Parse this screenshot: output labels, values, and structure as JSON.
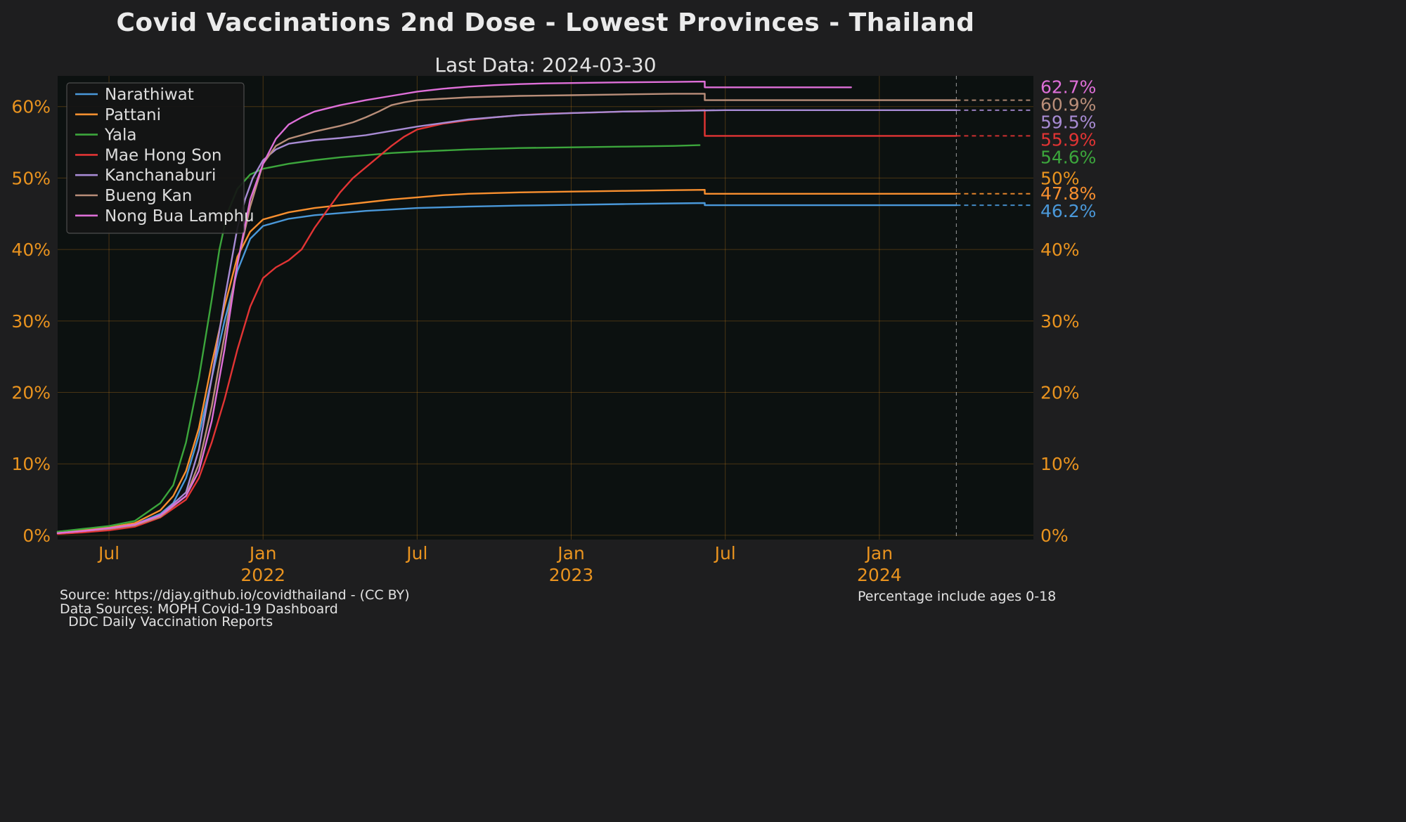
{
  "page": {
    "title": "Covid Vaccinations 2nd Dose - Lowest Provinces - Thailand",
    "subtitle": "Last Data: 2024-03-30"
  },
  "footer": {
    "source_line_1": "Source: https://djay.github.io/covidthailand - (CC BY)",
    "source_line_2": "Data Sources: MOPH Covid-19 Dashboard",
    "source_line_3": "  DDC Daily Vaccination Reports",
    "note": "Percentage include ages 0-18"
  },
  "theme": {
    "bg": "#1e1e1f",
    "plot_bg": "#0c1110",
    "tick_color": "#e9931f",
    "grid_color": "rgba(233,147,31,0.28)",
    "legend_bg": "#151515",
    "legend_border": "#4d4d4d",
    "legend_text": "#dddddd",
    "last_data_line_color": "#c8c8c8"
  },
  "chart_data": {
    "type": "line",
    "title": "Covid Vaccinations 2nd Dose - Lowest Provinces - Thailand",
    "subtitle": "Last Data: 2024-03-30",
    "legend_position": "upper-left",
    "x_axis": {
      "unit": "months since 2021-05",
      "domain_months": 38,
      "start": "2021-05",
      "end": "2024-07",
      "ticks": [
        {
          "m": 2,
          "label": "Jul"
        },
        {
          "m": 8,
          "label": "Jan",
          "year": "2022"
        },
        {
          "m": 14,
          "label": "Jul"
        },
        {
          "m": 20,
          "label": "Jan",
          "year": "2023"
        },
        {
          "m": 26,
          "label": "Jul"
        },
        {
          "m": 32,
          "label": "Jan",
          "year": "2024"
        }
      ]
    },
    "y_axis": {
      "unit": "%",
      "ylim": [
        -0.6,
        64.3
      ],
      "ticks_left": [
        0,
        10,
        20,
        30,
        40,
        50,
        60
      ],
      "ticks_right": [
        0,
        10,
        20,
        30,
        40,
        50
      ]
    },
    "last_data_month": 35,
    "series": [
      {
        "name": "Narathiwat",
        "color": "#4a98d9",
        "final_value": 46.2,
        "final_label": "46.2%",
        "dashed_extension": true,
        "points": [
          [
            0,
            0.4
          ],
          [
            1,
            0.7
          ],
          [
            2,
            1.0
          ],
          [
            3,
            1.5
          ],
          [
            4,
            3.0
          ],
          [
            4.5,
            4.5
          ],
          [
            5,
            8
          ],
          [
            5.5,
            14
          ],
          [
            6,
            22
          ],
          [
            6.5,
            30
          ],
          [
            7,
            37
          ],
          [
            7.5,
            41.5
          ],
          [
            8,
            43.3
          ],
          [
            9,
            44.3
          ],
          [
            10,
            44.8
          ],
          [
            11,
            45.1
          ],
          [
            12,
            45.4
          ],
          [
            13,
            45.6
          ],
          [
            14,
            45.8
          ],
          [
            15,
            45.9
          ],
          [
            16,
            46.0
          ],
          [
            18,
            46.15
          ],
          [
            20,
            46.25
          ],
          [
            22,
            46.35
          ],
          [
            24,
            46.45
          ],
          [
            25.2,
            46.5
          ],
          [
            25.2,
            46.2
          ],
          [
            35,
            46.2
          ]
        ]
      },
      {
        "name": "Pattani",
        "color": "#f88f2f",
        "final_value": 47.8,
        "final_label": "47.8%",
        "dashed_extension": true,
        "points": [
          [
            0,
            0.5
          ],
          [
            1,
            0.8
          ],
          [
            2,
            1.1
          ],
          [
            3,
            1.7
          ],
          [
            4,
            3.5
          ],
          [
            4.5,
            5.5
          ],
          [
            5,
            9
          ],
          [
            5.5,
            15
          ],
          [
            6,
            24
          ],
          [
            6.5,
            32
          ],
          [
            7,
            39
          ],
          [
            7.5,
            42.5
          ],
          [
            8,
            44.2
          ],
          [
            9,
            45.2
          ],
          [
            10,
            45.8
          ],
          [
            11,
            46.2
          ],
          [
            12,
            46.6
          ],
          [
            13,
            47.0
          ],
          [
            14,
            47.3
          ],
          [
            15,
            47.6
          ],
          [
            16,
            47.8
          ],
          [
            17,
            47.9
          ],
          [
            18,
            48.0
          ],
          [
            20,
            48.1
          ],
          [
            22,
            48.2
          ],
          [
            24,
            48.3
          ],
          [
            25.2,
            48.35
          ],
          [
            25.2,
            47.8
          ],
          [
            35,
            47.8
          ]
        ]
      },
      {
        "name": "Yala",
        "color": "#3ca63c",
        "final_value": 54.6,
        "final_label": "54.6%",
        "dashed_extension": false,
        "points": [
          [
            0,
            0.5
          ],
          [
            1,
            0.9
          ],
          [
            2,
            1.3
          ],
          [
            3,
            2.0
          ],
          [
            4,
            4.5
          ],
          [
            4.5,
            7
          ],
          [
            5,
            13
          ],
          [
            5.5,
            22
          ],
          [
            6,
            33
          ],
          [
            6.3,
            40
          ],
          [
            6.6,
            45
          ],
          [
            7,
            48.5
          ],
          [
            7.5,
            50.5
          ],
          [
            8,
            51.3
          ],
          [
            9,
            52.0
          ],
          [
            10,
            52.5
          ],
          [
            11,
            52.9
          ],
          [
            12,
            53.2
          ],
          [
            13,
            53.5
          ],
          [
            14,
            53.7
          ],
          [
            16,
            54.0
          ],
          [
            18,
            54.2
          ],
          [
            20,
            54.3
          ],
          [
            22,
            54.4
          ],
          [
            24,
            54.5
          ],
          [
            25,
            54.6
          ]
        ]
      },
      {
        "name": "Mae Hong Son",
        "color": "#e23434",
        "final_value": 55.9,
        "final_label": "55.9%",
        "dashed_extension": true,
        "points": [
          [
            0,
            0.2
          ],
          [
            1,
            0.4
          ],
          [
            2,
            0.7
          ],
          [
            3,
            1.2
          ],
          [
            4,
            2.5
          ],
          [
            5,
            5
          ],
          [
            5.5,
            8
          ],
          [
            6,
            13
          ],
          [
            6.5,
            19
          ],
          [
            7,
            26
          ],
          [
            7.5,
            32
          ],
          [
            8,
            36
          ],
          [
            8.5,
            37.5
          ],
          [
            9,
            38.5
          ],
          [
            9.5,
            40
          ],
          [
            10,
            43
          ],
          [
            10.5,
            45.5
          ],
          [
            11,
            48
          ],
          [
            11.5,
            50
          ],
          [
            12,
            51.5
          ],
          [
            12.5,
            53
          ],
          [
            13,
            54.5
          ],
          [
            13.5,
            55.8
          ],
          [
            14,
            56.8
          ],
          [
            15,
            57.6
          ],
          [
            16,
            58.1
          ],
          [
            17,
            58.5
          ],
          [
            18,
            58.8
          ],
          [
            19,
            59.0
          ],
          [
            20,
            59.1
          ],
          [
            21,
            59.2
          ],
          [
            22,
            59.3
          ],
          [
            24,
            59.4
          ],
          [
            25.2,
            59.5
          ],
          [
            25.2,
            55.9
          ],
          [
            35,
            55.9
          ]
        ]
      },
      {
        "name": "Kanchanaburi",
        "color": "#a88bd4",
        "final_value": 59.5,
        "final_label": "59.5%",
        "dashed_extension": true,
        "points": [
          [
            0,
            0.3
          ],
          [
            1,
            0.6
          ],
          [
            2,
            0.9
          ],
          [
            3,
            1.4
          ],
          [
            4,
            2.8
          ],
          [
            5,
            6
          ],
          [
            5.5,
            12
          ],
          [
            6,
            22
          ],
          [
            6.5,
            33
          ],
          [
            7,
            43
          ],
          [
            7.3,
            47
          ],
          [
            7.6,
            50
          ],
          [
            8,
            52.5
          ],
          [
            8.5,
            54
          ],
          [
            9,
            54.8
          ],
          [
            10,
            55.3
          ],
          [
            11,
            55.6
          ],
          [
            12,
            56.0
          ],
          [
            13,
            56.6
          ],
          [
            14,
            57.2
          ],
          [
            15,
            57.7
          ],
          [
            16,
            58.2
          ],
          [
            17,
            58.5
          ],
          [
            18,
            58.8
          ],
          [
            20,
            59.1
          ],
          [
            22,
            59.3
          ],
          [
            24,
            59.4
          ],
          [
            26,
            59.5
          ],
          [
            35,
            59.5
          ]
        ]
      },
      {
        "name": "Bueng Kan",
        "color": "#b98e79",
        "final_value": 60.9,
        "final_label": "60.9%",
        "dashed_extension": true,
        "points": [
          [
            0,
            0.3
          ],
          [
            1,
            0.6
          ],
          [
            2,
            0.9
          ],
          [
            3,
            1.4
          ],
          [
            4,
            2.6
          ],
          [
            5,
            5.5
          ],
          [
            5.5,
            10
          ],
          [
            6,
            18
          ],
          [
            6.5,
            28
          ],
          [
            7,
            38
          ],
          [
            7.5,
            46
          ],
          [
            8,
            52
          ],
          [
            8.5,
            54.5
          ],
          [
            9,
            55.5
          ],
          [
            10,
            56.5
          ],
          [
            11,
            57.3
          ],
          [
            11.5,
            57.8
          ],
          [
            12,
            58.5
          ],
          [
            12.5,
            59.3
          ],
          [
            13,
            60.2
          ],
          [
            13.5,
            60.6
          ],
          [
            14,
            60.9
          ],
          [
            15,
            61.1
          ],
          [
            16,
            61.3
          ],
          [
            17,
            61.4
          ],
          [
            18,
            61.5
          ],
          [
            20,
            61.6
          ],
          [
            22,
            61.7
          ],
          [
            24,
            61.8
          ],
          [
            25.2,
            61.8
          ],
          [
            25.2,
            60.9
          ],
          [
            35,
            60.9
          ]
        ]
      },
      {
        "name": "Nong Bua Lamphu",
        "color": "#de6fd8",
        "final_value": 62.7,
        "final_label": "62.7%",
        "dashed_extension": false,
        "points": [
          [
            0,
            0.3
          ],
          [
            1,
            0.6
          ],
          [
            2,
            1.0
          ],
          [
            3,
            1.5
          ],
          [
            4,
            2.8
          ],
          [
            5,
            5.5
          ],
          [
            5.5,
            9
          ],
          [
            6,
            16
          ],
          [
            6.5,
            26
          ],
          [
            7,
            38
          ],
          [
            7.5,
            47
          ],
          [
            8,
            52
          ],
          [
            8.5,
            55.5
          ],
          [
            9,
            57.5
          ],
          [
            9.5,
            58.5
          ],
          [
            10,
            59.3
          ],
          [
            11,
            60.2
          ],
          [
            12,
            60.9
          ],
          [
            13,
            61.5
          ],
          [
            14,
            62.1
          ],
          [
            15,
            62.5
          ],
          [
            16,
            62.8
          ],
          [
            17,
            63.0
          ],
          [
            18,
            63.15
          ],
          [
            19,
            63.25
          ],
          [
            20,
            63.3
          ],
          [
            21,
            63.35
          ],
          [
            22,
            63.4
          ],
          [
            24,
            63.45
          ],
          [
            25.2,
            63.5
          ],
          [
            25.2,
            62.7
          ],
          [
            30.9,
            62.7
          ]
        ]
      }
    ]
  }
}
